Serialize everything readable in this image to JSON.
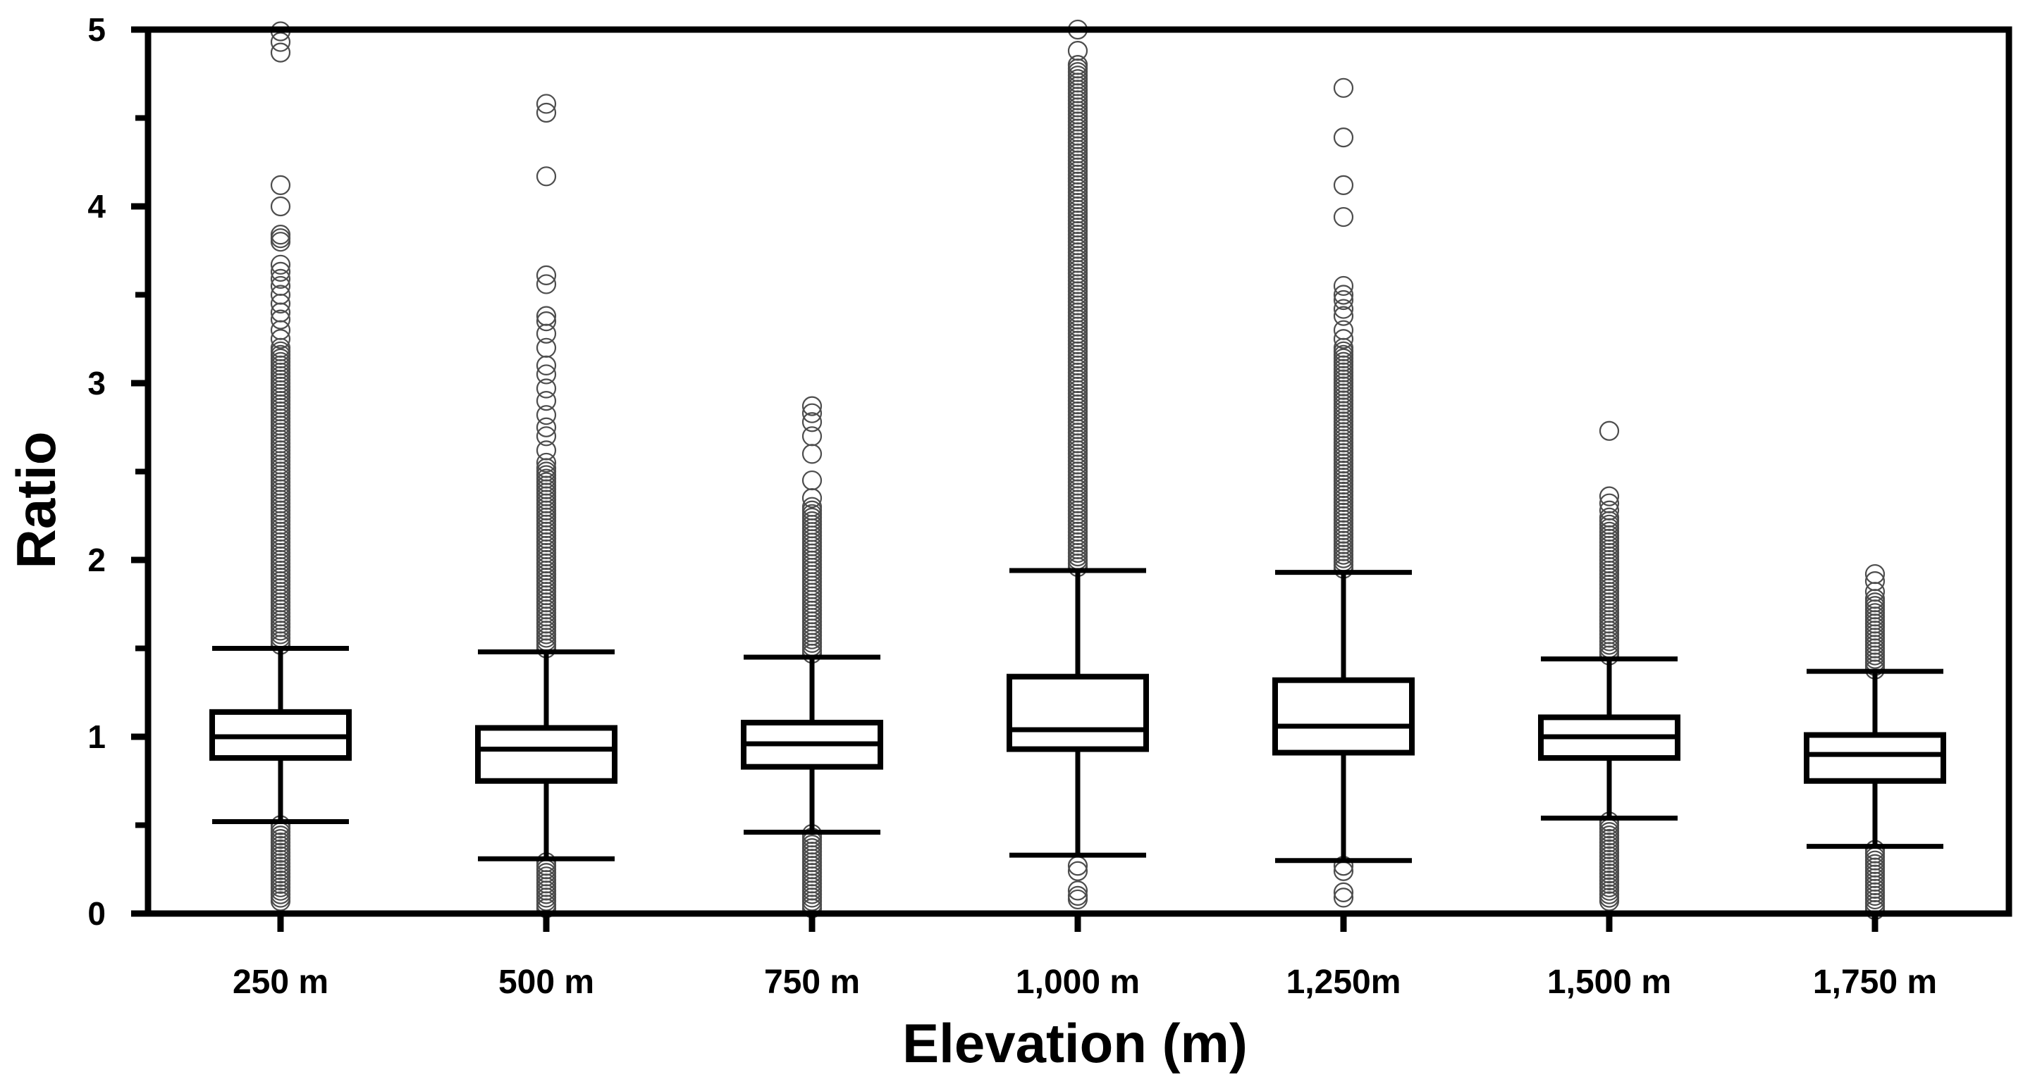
{
  "chart_data": {
    "type": "box",
    "title": "",
    "xlabel": "Elevation (m)",
    "ylabel": "Ratio",
    "ylim": [
      0,
      5
    ],
    "yticks": [
      0,
      1,
      2,
      3,
      4,
      5
    ],
    "yticks_minor": [
      0.5,
      1.5,
      2.5,
      3.5,
      4.5
    ],
    "grid": false,
    "categories": [
      "250 m",
      "500 m",
      "750 m",
      "1,000 m",
      "1,250m",
      "1,500 m",
      "1,750 m"
    ],
    "boxes": [
      {
        "whisker_low": 0.52,
        "q1": 0.88,
        "median": 1.0,
        "q3": 1.14,
        "whisker_high": 1.5,
        "outliers_high": [
          4.99,
          4.93,
          4.87,
          4.12,
          4.0,
          3.84,
          3.82,
          3.8,
          3.67,
          3.63,
          3.59,
          3.55,
          3.5,
          3.45,
          3.4,
          3.36,
          3.3,
          3.25,
          3.2
        ],
        "outlier_band_high": [
          1.52,
          3.18
        ],
        "outlier_band_low": [
          0.07,
          0.5
        ]
      },
      {
        "whisker_low": 0.31,
        "q1": 0.75,
        "median": 0.93,
        "q3": 1.05,
        "whisker_high": 1.48,
        "outliers_high": [
          4.58,
          4.53,
          4.17,
          3.61,
          3.56,
          3.38,
          3.35,
          3.28,
          3.2,
          3.1,
          3.05,
          2.97,
          2.9,
          2.82,
          2.75,
          2.7,
          2.62,
          2.55
        ],
        "outlier_band_high": [
          1.5,
          2.52
        ],
        "outlier_band_low": [
          0.03,
          0.29
        ]
      },
      {
        "whisker_low": 0.46,
        "q1": 0.83,
        "median": 0.96,
        "q3": 1.08,
        "whisker_high": 1.45,
        "outliers_high": [
          2.87,
          2.83,
          2.78,
          2.7,
          2.6,
          2.45,
          2.35,
          2.3
        ],
        "outlier_band_high": [
          1.47,
          2.28
        ],
        "outlier_band_low": [
          0.03,
          0.45
        ]
      },
      {
        "whisker_low": 0.33,
        "q1": 0.93,
        "median": 1.04,
        "q3": 1.34,
        "whisker_high": 1.94,
        "outliers_high": [
          5.0,
          4.88,
          4.8
        ],
        "outlier_band_high": [
          1.96,
          4.8
        ],
        "outliers_low": [
          0.27,
          0.24,
          0.13,
          0.1,
          0.08
        ]
      },
      {
        "whisker_low": 0.3,
        "q1": 0.91,
        "median": 1.06,
        "q3": 1.32,
        "whisker_high": 1.93,
        "outliers_high": [
          4.67,
          4.39,
          4.12,
          3.94,
          3.55,
          3.5,
          3.47,
          3.42,
          3.38,
          3.3,
          3.25,
          3.2
        ],
        "outlier_band_high": [
          1.95,
          3.18
        ],
        "outliers_low": [
          0.27,
          0.24,
          0.12,
          0.09
        ]
      },
      {
        "whisker_low": 0.54,
        "q1": 0.88,
        "median": 1.0,
        "q3": 1.11,
        "whisker_high": 1.44,
        "outliers_high": [
          2.73,
          2.36,
          2.32,
          2.28,
          2.24
        ],
        "outlier_band_high": [
          1.46,
          2.22
        ],
        "outlier_band_low": [
          0.07,
          0.52
        ]
      },
      {
        "whisker_low": 0.38,
        "q1": 0.75,
        "median": 0.9,
        "q3": 1.01,
        "whisker_high": 1.37,
        "outliers_high": [
          1.92,
          1.88,
          1.82,
          1.78
        ],
        "outlier_band_high": [
          1.38,
          1.76
        ],
        "outlier_band_low": [
          0.02,
          0.36
        ]
      }
    ]
  }
}
